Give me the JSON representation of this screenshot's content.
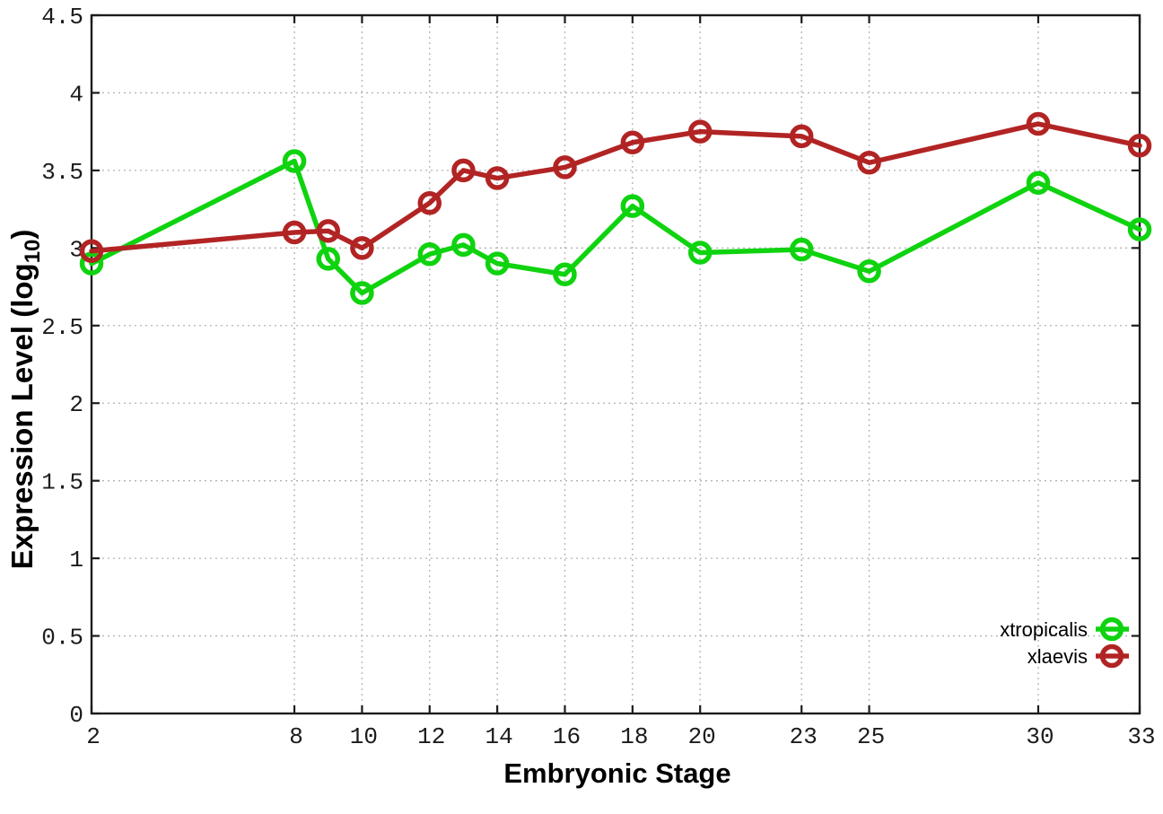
{
  "chart_data": {
    "type": "line",
    "title": "",
    "xlabel": "Embryonic Stage",
    "ylabel": "Expression Level (log10)",
    "ylabel_parts": [
      "Expression Level (log",
      "10",
      ")"
    ],
    "x": [
      2,
      8,
      9,
      10,
      12,
      13,
      14,
      16,
      18,
      20,
      23,
      25,
      30,
      33
    ],
    "series": [
      {
        "name": "xtropicalis",
        "color": "#0fd30f",
        "marker": "open-circle",
        "values": [
          2.9,
          3.56,
          2.93,
          2.71,
          2.96,
          3.02,
          2.9,
          2.83,
          3.27,
          2.97,
          2.99,
          2.85,
          3.42,
          3.12
        ]
      },
      {
        "name": "xlaevis",
        "color": "#b22424",
        "marker": "open-circle",
        "values": [
          2.98,
          3.1,
          3.11,
          3.0,
          3.29,
          3.5,
          3.45,
          3.52,
          3.68,
          3.75,
          3.72,
          3.55,
          3.8,
          3.66
        ]
      }
    ],
    "xlim": [
      2,
      33
    ],
    "ylim": [
      0,
      4.5
    ],
    "xticks": {
      "values": [
        2,
        8,
        10,
        12,
        14,
        16,
        18,
        20,
        23,
        25,
        30,
        33
      ],
      "labels": [
        "2",
        "8",
        "10",
        "12",
        "14",
        "16",
        "18",
        "20",
        "23",
        "25",
        "30",
        "33"
      ]
    },
    "yticks": {
      "values": [
        0,
        0.5,
        1,
        1.5,
        2,
        2.5,
        3,
        3.5,
        4,
        4.5
      ],
      "labels": [
        "0",
        "0.5",
        "1",
        "1.5",
        "2",
        "2.5",
        "3",
        "3.5",
        "4",
        "4.5"
      ]
    },
    "grid": true,
    "grid_color": "#b3b3b3",
    "axis_color": "#1c1c1c",
    "background": "#ffffff",
    "legend_position": "bottom-right",
    "legend_entries": [
      "xtropicalis",
      "xlaevis"
    ]
  }
}
